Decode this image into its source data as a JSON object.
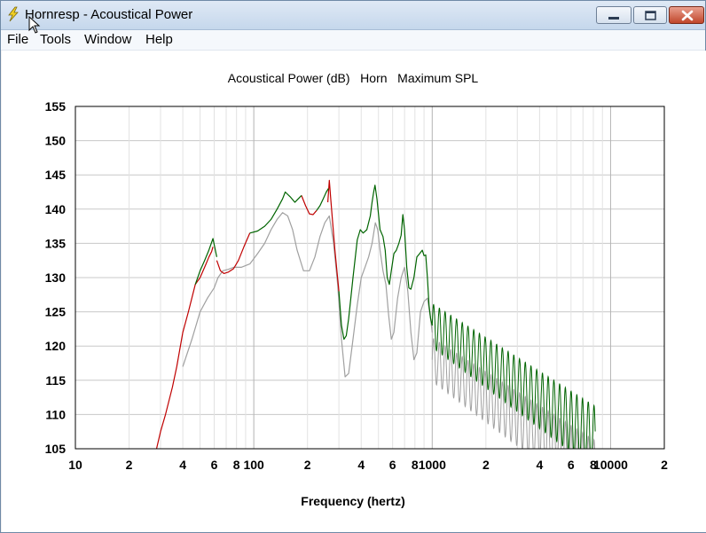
{
  "window": {
    "title": "Hornresp - Acoustical Power",
    "minimize": "minimize-icon",
    "maximize": "maximize-icon",
    "close": "close-icon",
    "app_icon": "lightning-icon"
  },
  "menu": [
    {
      "label": "File"
    },
    {
      "label": "Tools"
    },
    {
      "label": "Window"
    },
    {
      "label": "Help"
    }
  ],
  "chart_data": {
    "type": "line",
    "title": "Acoustical Power (dB)   Horn   Maximum SPL",
    "xlabel": "Frequency (hertz)",
    "ylabel": "",
    "x_scale": "log",
    "xlim": [
      10,
      20000
    ],
    "ylim": [
      105,
      155
    ],
    "y_ticks": [
      "155",
      "150",
      "145",
      "140",
      "135",
      "130",
      "125",
      "120",
      "115",
      "110",
      "105"
    ],
    "x_tick_labels": [
      {
        "x": 10,
        "label": "10"
      },
      {
        "x": 20,
        "label": "2"
      },
      {
        "x": 40,
        "label": "4"
      },
      {
        "x": 60,
        "label": "6"
      },
      {
        "x": 80,
        "label": "8"
      },
      {
        "x": 100,
        "label": "100"
      },
      {
        "x": 200,
        "label": "2"
      },
      {
        "x": 400,
        "label": "4"
      },
      {
        "x": 600,
        "label": "6"
      },
      {
        "x": 800,
        "label": "8"
      },
      {
        "x": 1000,
        "label": "1000"
      },
      {
        "x": 2000,
        "label": "2"
      },
      {
        "x": 4000,
        "label": "4"
      },
      {
        "x": 6000,
        "label": "6"
      },
      {
        "x": 8000,
        "label": "8"
      },
      {
        "x": 10000,
        "label": "10000"
      },
      {
        "x": 20000,
        "label": "2"
      }
    ],
    "grid": true,
    "series": [
      {
        "color": "#c00000",
        "segments": [
          [
            [
              28.5,
              105
            ],
            [
              30,
              107.5
            ],
            [
              32,
              110
            ],
            [
              35,
              114
            ],
            [
              37,
              117
            ],
            [
              40,
              122
            ],
            [
              43,
              125
            ],
            [
              47,
              129
            ],
            [
              50,
              130
            ],
            [
              52,
              131
            ],
            [
              54,
              132
            ],
            [
              56,
              133
            ],
            [
              58,
              133.8
            ],
            [
              59,
              134.5
            ]
          ],
          [
            [
              62,
              132.5
            ],
            [
              65,
              131
            ],
            [
              68,
              130.6
            ],
            [
              72,
              130.8
            ],
            [
              77,
              131.3
            ],
            [
              82,
              132.5
            ],
            [
              88,
              134.5
            ],
            [
              95,
              136.5
            ]
          ],
          [
            [
              185,
              142
            ],
            [
              195,
              140.5
            ],
            [
              205,
              139.3
            ],
            [
              215,
              139.2
            ],
            [
              225,
              139.8
            ]
          ],
          [
            [
              260,
              141
            ],
            [
              265,
              144.2
            ],
            [
              270,
              141.5
            ],
            [
              285,
              134
            ],
            [
              300,
              128
            ]
          ]
        ]
      },
      {
        "color": "#006400",
        "segments": [
          [
            [
              47,
              129
            ],
            [
              50,
              131
            ],
            [
              53,
              132.5
            ],
            [
              56,
              134
            ],
            [
              59,
              135.7
            ],
            [
              62,
              133
            ]
          ],
          [
            [
              95,
              136.5
            ],
            [
              105,
              136.8
            ],
            [
              115,
              137.5
            ],
            [
              125,
              138.5
            ],
            [
              135,
              140
            ],
            [
              145,
              141.5
            ],
            [
              150,
              142.5
            ],
            [
              160,
              141.8
            ],
            [
              170,
              141
            ],
            [
              185,
              142
            ]
          ],
          [
            [
              225,
              139.8
            ],
            [
              235,
              140.5
            ],
            [
              245,
              141.5
            ],
            [
              255,
              142.5
            ],
            [
              262,
              143
            ]
          ],
          [
            [
              300,
              128
            ],
            [
              310,
              123
            ],
            [
              320,
              121
            ],
            [
              330,
              121.5
            ],
            [
              340,
              124
            ],
            [
              360,
              130
            ],
            [
              380,
              135.5
            ],
            [
              395,
              137
            ],
            [
              410,
              136.5
            ],
            [
              430,
              137
            ],
            [
              450,
              139
            ],
            [
              460,
              141
            ],
            [
              470,
              142.5
            ],
            [
              478,
              143.5
            ],
            [
              490,
              141.5
            ],
            [
              510,
              137
            ],
            [
              530,
              136
            ],
            [
              545,
              134
            ],
            [
              560,
              130
            ],
            [
              575,
              129
            ],
            [
              590,
              131
            ],
            [
              610,
              133.5
            ],
            [
              630,
              134
            ],
            [
              650,
              135
            ],
            [
              670,
              136.2
            ],
            [
              685,
              139.2
            ],
            [
              700,
              137
            ],
            [
              720,
              131.5
            ],
            [
              740,
              128.5
            ],
            [
              760,
              128.3
            ],
            [
              790,
              130
            ],
            [
              820,
              133
            ],
            [
              850,
              133.5
            ],
            [
              880,
              134
            ],
            [
              900,
              133.2
            ],
            [
              920,
              133.3
            ],
            [
              940,
              130
            ],
            [
              960,
              126
            ],
            [
              980,
              124
            ],
            [
              1000,
              123
            ]
          ]
        ]
      },
      {
        "color": "#a0a0a0",
        "segments": [
          [
            [
              40,
              117
            ],
            [
              45,
              121
            ],
            [
              50,
              125
            ],
            [
              55,
              127
            ],
            [
              60,
              128.5
            ],
            [
              63,
              130
            ],
            [
              67,
              131
            ],
            [
              72,
              131.2
            ],
            [
              77,
              131.5
            ],
            [
              85,
              131.5
            ],
            [
              95,
              132
            ],
            [
              105,
              133.5
            ],
            [
              115,
              135
            ],
            [
              125,
              137
            ],
            [
              135,
              138.5
            ],
            [
              145,
              139.5
            ],
            [
              155,
              139
            ],
            [
              165,
              137
            ],
            [
              175,
              134
            ],
            [
              190,
              131
            ],
            [
              205,
              131
            ],
            [
              220,
              133
            ],
            [
              235,
              136
            ],
            [
              250,
              138
            ],
            [
              265,
              139
            ],
            [
              280,
              135
            ],
            [
              295,
              129
            ],
            [
              310,
              121
            ],
            [
              325,
              115.5
            ],
            [
              340,
              116
            ],
            [
              360,
              121
            ],
            [
              380,
              126
            ],
            [
              400,
              130
            ],
            [
              420,
              131.5
            ],
            [
              440,
              133
            ],
            [
              460,
              135
            ],
            [
              480,
              138
            ],
            [
              495,
              137
            ],
            [
              510,
              134
            ],
            [
              530,
              131
            ],
            [
              550,
              129
            ],
            [
              570,
              124.5
            ],
            [
              590,
              121
            ],
            [
              610,
              122
            ],
            [
              640,
              127
            ],
            [
              670,
              130
            ],
            [
              700,
              131.5
            ],
            [
              730,
              128
            ],
            [
              760,
              122
            ],
            [
              790,
              118
            ],
            [
              820,
              119
            ],
            [
              860,
              125
            ],
            [
              900,
              126.5
            ],
            [
              940,
              127
            ],
            [
              980,
              124
            ],
            [
              1000,
              122
            ]
          ]
        ]
      }
    ]
  }
}
